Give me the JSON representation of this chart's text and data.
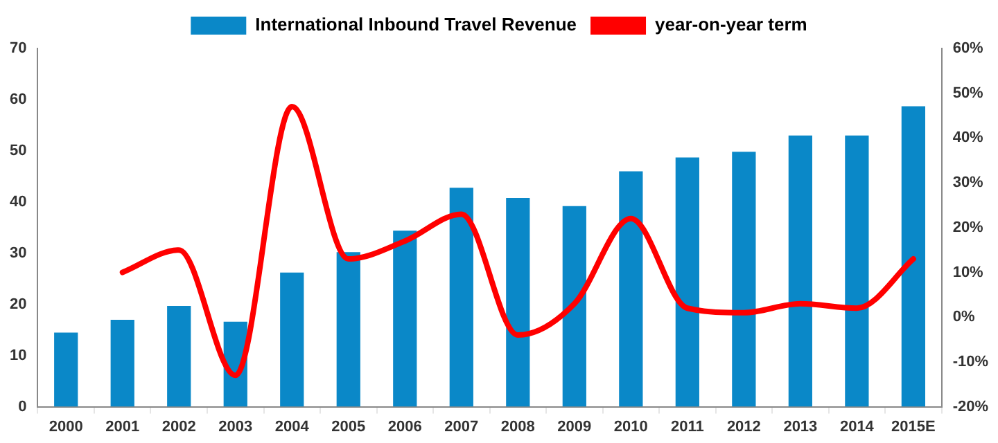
{
  "chart_data": {
    "type": "bar",
    "categories": [
      "2000",
      "2001",
      "2002",
      "2003",
      "2004",
      "2005",
      "2006",
      "2007",
      "2008",
      "2009",
      "2010",
      "2011",
      "2012",
      "2013",
      "2014",
      "2015E"
    ],
    "series": [
      {
        "name": "International Inbound Travel Revenue",
        "color": "#0a88c8",
        "values": [
          14.5,
          17,
          19.7,
          16.6,
          26.2,
          30.2,
          34.4,
          42.8,
          40.8,
          39.2,
          46,
          48.7,
          49.8,
          53,
          53,
          58.7
        ]
      },
      {
        "name": "year-on-year term",
        "type": "line",
        "axis": "y2",
        "color": "#ff0000",
        "values": [
          null,
          10,
          15,
          -13,
          47,
          13,
          17,
          23,
          -4,
          3,
          22,
          2,
          1,
          3,
          2,
          13
        ]
      }
    ],
    "ylim": [
      0,
      70
    ],
    "yticks": [
      0,
      10,
      20,
      30,
      40,
      50,
      60,
      70
    ],
    "y2lim": [
      -20,
      60
    ],
    "y2ticks": [
      {
        "value": -20,
        "label": "-20%"
      },
      {
        "value": -10,
        "label": "-10%"
      },
      {
        "value": 0,
        "label": "0%"
      },
      {
        "value": 10,
        "label": "10%"
      },
      {
        "value": 20,
        "label": "20%"
      },
      {
        "value": 30,
        "label": "30%"
      },
      {
        "value": 40,
        "label": "40%"
      },
      {
        "value": 50,
        "label": "50%"
      },
      {
        "value": 60,
        "label": "60%"
      }
    ],
    "grid": false,
    "legend": "top",
    "marker": "none",
    "line_style": "solid"
  }
}
